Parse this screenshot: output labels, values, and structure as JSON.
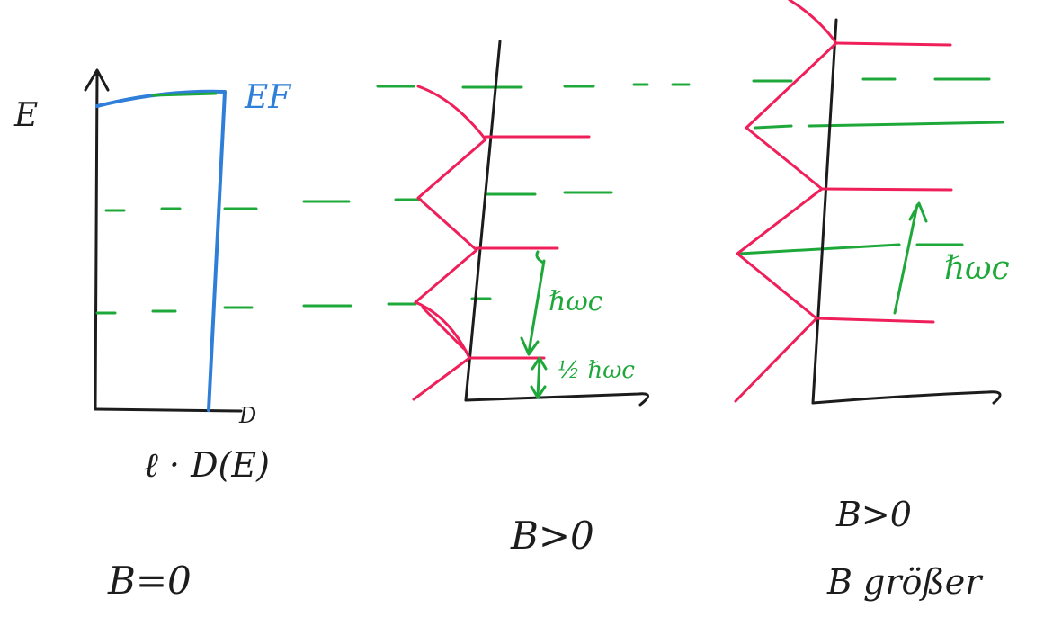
{
  "colors": {
    "ink": "#1c1c1c",
    "fermi_green": "#1fa83a",
    "dos_red": "#ef1f5a",
    "dos_blue": "#2f7fd8"
  },
  "panels": [
    {
      "id": "panel-b0",
      "y_axis_label": "E",
      "fermi_label": "EF",
      "x_axis_label": "D",
      "formula_label": "ℓ · D(E)",
      "caption": "B=0"
    },
    {
      "id": "panel-b-positive",
      "spacing_label": "ℏωc",
      "half_spacing_label": "½ ℏωc",
      "caption": "B>0"
    },
    {
      "id": "panel-b-large",
      "spacing_label": "ℏωc",
      "caption_line1": "B>0",
      "caption_line2": "B größer"
    }
  ]
}
